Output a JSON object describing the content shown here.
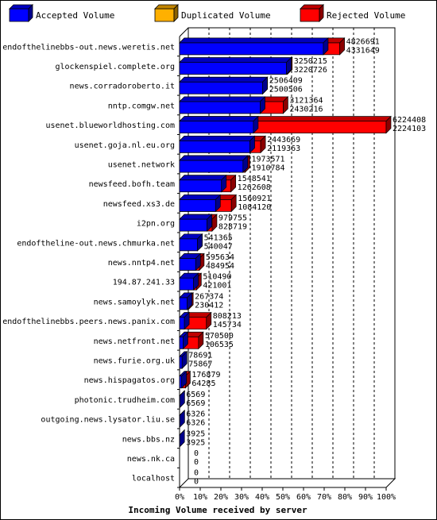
{
  "colors": {
    "accepted": "#0000ff",
    "duplicated": "#ffb000",
    "rejected": "#ff0000"
  },
  "legend": [
    {
      "key": "accepted",
      "label": "Accepted Volume"
    },
    {
      "key": "duplicated",
      "label": "Duplicated Volume"
    },
    {
      "key": "rejected",
      "label": "Rejected Volume"
    }
  ],
  "chart_data": {
    "type": "bar",
    "orientation": "horizontal",
    "xlabel": "Incoming Volume received by server",
    "xlim": [
      0,
      100
    ],
    "x_ticks": [
      "0%",
      "10%",
      "20%",
      "30%",
      "40%",
      "50%",
      "60%",
      "70%",
      "80%",
      "90%",
      "100%"
    ],
    "grid": true,
    "legend_position": "top",
    "series": [
      {
        "name": "Accepted Volume",
        "key": "accepted"
      },
      {
        "name": "Duplicated Volume",
        "key": "duplicated"
      },
      {
        "name": "Rejected Volume",
        "key": "rejected"
      }
    ],
    "rows": [
      {
        "server": "endofthelinebbs-out.news.weretis.net",
        "total": 4826691,
        "accepted": 4331649
      },
      {
        "server": "glockenspiel.complete.org",
        "total": 3250215,
        "accepted": 3220726
      },
      {
        "server": "news.corradoroberto.it",
        "total": 2506409,
        "accepted": 2500506
      },
      {
        "server": "nntp.comgw.net",
        "total": 3121364,
        "accepted": 2430216
      },
      {
        "server": "usenet.blueworldhosting.com",
        "total": 6224408,
        "accepted": 2224103
      },
      {
        "server": "usenet.goja.nl.eu.org",
        "total": 2443669,
        "accepted": 2119363
      },
      {
        "server": "usenet.network",
        "total": 1973571,
        "accepted": 1910784
      },
      {
        "server": "newsfeed.bofh.team",
        "total": 1548541,
        "accepted": 1262608
      },
      {
        "server": "newsfeed.xs3.de",
        "total": 1560921,
        "accepted": 1084120
      },
      {
        "server": "i2pn.org",
        "total": 979755,
        "accepted": 828719
      },
      {
        "server": "endoftheline-out.news.chmurka.net",
        "total": 541365,
        "accepted": 540047
      },
      {
        "server": "news.nntp4.net",
        "total": 595634,
        "accepted": 484954
      },
      {
        "server": "194.87.241.33",
        "total": 510490,
        "accepted": 421001
      },
      {
        "server": "news.samoylyk.net",
        "total": 267374,
        "accepted": 230412
      },
      {
        "server": "endofthelinebbs.peers.news.panix.com",
        "total": 808213,
        "accepted": 145734
      },
      {
        "server": "news.netfront.net",
        "total": 570500,
        "accepted": 106535
      },
      {
        "server": "news.furie.org.uk",
        "total": 78691,
        "accepted": 75867
      },
      {
        "server": "news.hispagatos.org",
        "total": 176879,
        "accepted": 64285
      },
      {
        "server": "photonic.trudheim.com",
        "total": 6569,
        "accepted": 6569
      },
      {
        "server": "outgoing.news.lysator.liu.se",
        "total": 6326,
        "accepted": 6326
      },
      {
        "server": "news.bbs.nz",
        "total": 3925,
        "accepted": 3925
      },
      {
        "server": "news.nk.ca",
        "total": 0,
        "accepted": 0
      },
      {
        "server": "localhost",
        "total": 0,
        "accepted": 0
      }
    ]
  }
}
